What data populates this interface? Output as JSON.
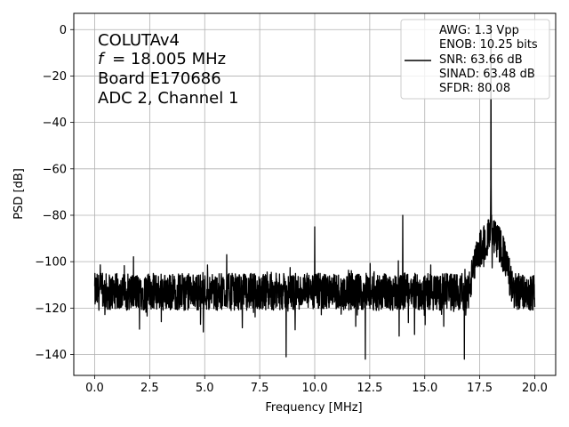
{
  "chart_data": {
    "type": "line",
    "title": "",
    "xlabel": "Frequency [MHz]",
    "ylabel": "PSD [dB]",
    "xlim": [
      -0.95,
      20.95
    ],
    "ylim": [
      -149,
      7
    ],
    "xticks": [
      0.0,
      2.5,
      5.0,
      7.5,
      10.0,
      12.5,
      15.0,
      17.5,
      20.0
    ],
    "xtick_labels": [
      "0.0",
      "2.5",
      "5.0",
      "7.5",
      "10.0",
      "12.5",
      "15.0",
      "17.5",
      "20.0"
    ],
    "yticks": [
      0,
      -20,
      -40,
      -60,
      -80,
      -100,
      -120,
      -140
    ],
    "ytick_labels": [
      "0",
      "−20",
      "−40",
      "−60",
      "−80",
      "−100",
      "−120",
      "−140"
    ],
    "grid": true,
    "legend_position": "top-right",
    "annotation_lines": [
      "COLUTAv4",
      "= 18.005 MHz",
      "Board E170686",
      "ADC 2, Channel 1"
    ],
    "annotation_symbol": "f",
    "legend_lines": [
      "AWG: 1.3 Vpp",
      "ENOB: 10.25 bits",
      "SNR: 63.66 dB",
      "SINAD: 63.48 dB",
      "SFDR: 80.08"
    ],
    "series": [
      {
        "color": "#000000",
        "noise_floor_db": -113,
        "noise_range_db": [
          -142,
          -97
        ],
        "peaks": [
          {
            "x": 18.005,
            "y": 0
          },
          {
            "x": 14.0,
            "y": -80
          },
          {
            "x": 10.0,
            "y": -85
          },
          {
            "x": 6.0,
            "y": -97
          },
          {
            "x": 8.7,
            "y": -141
          },
          {
            "x": 12.3,
            "y": -142
          },
          {
            "x": 16.8,
            "y": -142
          }
        ],
        "band_hump": {
          "x_start": 17.0,
          "x_end": 19.0,
          "level_db": -85
        }
      }
    ]
  }
}
